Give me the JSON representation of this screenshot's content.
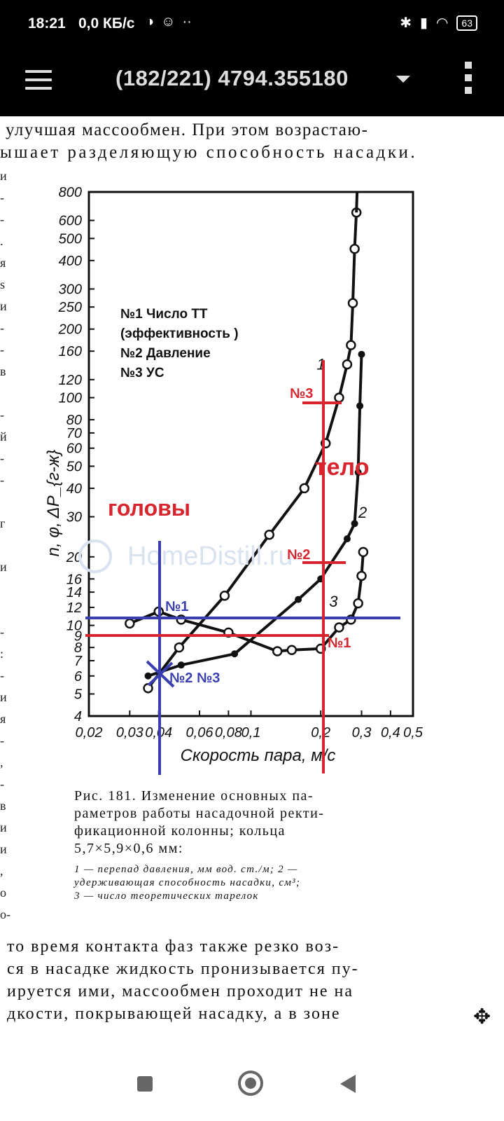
{
  "status": {
    "time": "18:21",
    "net": "0,0 КБ/с",
    "battery": "63"
  },
  "appbar": {
    "title": "(182/221) 4794.355180"
  },
  "page": {
    "top_lines": [
      "улучшая массообмен. При этом возрастаю-",
      "ышает  разделяющую  способность  насадки."
    ],
    "margin_marks": [
      "и",
      "-",
      "-",
      ".",
      "я",
      "s",
      "и",
      "-",
      "-",
      "в",
      "",
      "-",
      "й",
      "-",
      "-",
      "",
      "г",
      "",
      "и",
      "",
      "",
      "-",
      ":",
      "-",
      "и",
      "я",
      "-",
      ",",
      "-",
      "в",
      "и",
      "и",
      ",",
      "о",
      "о-"
    ],
    "caption_lines": [
      "Рис. 181. Изменение основных па-",
      "раметров работы насадочной ректи-",
      "фикационной      колонны;      кольца",
      "5,7×5,9×0,6 мм:"
    ],
    "legend_lines": [
      "1 — перепад давления, мм вод. ст./м; 2 —",
      "удерживающая способность насадки, см³;",
      "3 — число теоретических тарелок"
    ],
    "bottom_lines": [
      " то время  контакта фаз  также резко воз-",
      "ся  в насадке  жидкость пронизывается пу-",
      "ируется ими, массообмен  проходит  не на",
      "дкости,  покрывающей  насадку,  а в зоне"
    ]
  },
  "annotations": {
    "black_lines": [
      "№1 Число ТТ",
      "(эффективность )",
      "№2 Давление",
      "№3  УС"
    ],
    "golovy": "головы",
    "telo": "тело",
    "red_n3": "№3",
    "red_n2": "№2",
    "red_n1": "№1",
    "blue_n1": "№1",
    "blue_n2n3": "№2 №3",
    "watermark": "HomeDistill.ru",
    "red_color": "#d8242c",
    "blue_color": "#3a3fb0"
  },
  "chart_data": {
    "type": "line",
    "xscale": "log",
    "yscale": "log",
    "xlabel": "Скорость пара, м/с",
    "ylabel": "n, φ, ΔP_{г-ж}",
    "x_ticks": [
      "0,02",
      "0,03",
      "0,04",
      "0,06",
      "0,08",
      "0,1",
      "0,2",
      "0,3",
      "0,4",
      "0,5"
    ],
    "y_ticks": [
      "4",
      "5",
      "6",
      "7",
      "8",
      "9",
      "10",
      "12",
      "14",
      "16",
      "20",
      "30",
      "40",
      "50",
      "60",
      "70",
      "80",
      "100",
      "120",
      "160",
      "200",
      "250",
      "300",
      "400",
      "500",
      "600",
      "800"
    ],
    "xlim": [
      0.02,
      0.5
    ],
    "ylim": [
      4,
      800
    ],
    "series": [
      {
        "name": "1",
        "points": [
          [
            0.036,
            5.3
          ],
          [
            0.049,
            8
          ],
          [
            0.077,
            13.5
          ],
          [
            0.12,
            25
          ],
          [
            0.17,
            40
          ],
          [
            0.21,
            63
          ],
          [
            0.24,
            100
          ],
          [
            0.26,
            140
          ],
          [
            0.27,
            170
          ],
          [
            0.275,
            260
          ],
          [
            0.28,
            450
          ],
          [
            0.285,
            650
          ]
        ],
        "marker": "open"
      },
      {
        "name": "2",
        "points": [
          [
            0.036,
            6
          ],
          [
            0.05,
            6.7
          ],
          [
            0.085,
            7.5
          ],
          [
            0.16,
            13
          ],
          [
            0.2,
            16
          ],
          [
            0.26,
            24
          ],
          [
            0.28,
            28
          ],
          [
            0.29,
            47
          ],
          [
            0.295,
            92
          ],
          [
            0.3,
            155
          ]
        ],
        "marker": "filled"
      },
      {
        "name": "3",
        "points": [
          [
            0.03,
            10.2
          ],
          [
            0.04,
            11.5
          ],
          [
            0.05,
            10.6
          ],
          [
            0.08,
            9.3
          ],
          [
            0.13,
            7.7
          ],
          [
            0.15,
            7.8
          ],
          [
            0.2,
            7.9
          ],
          [
            0.24,
            9.8
          ],
          [
            0.27,
            10.6
          ],
          [
            0.29,
            12.5
          ],
          [
            0.3,
            16.5
          ],
          [
            0.305,
            21
          ]
        ],
        "marker": "open"
      }
    ]
  }
}
